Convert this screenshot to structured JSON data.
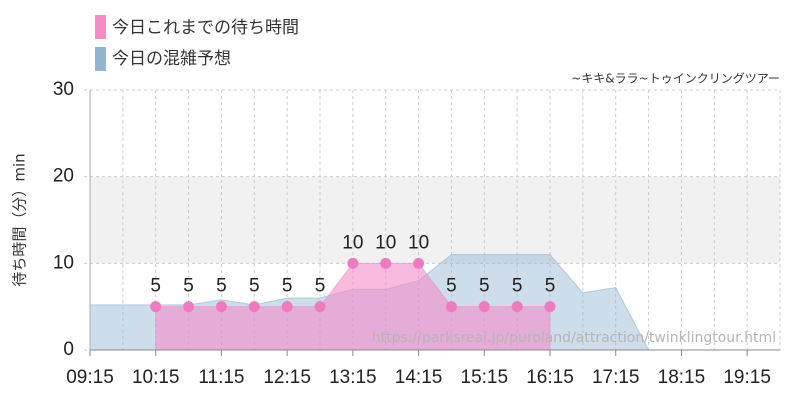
{
  "chart_data": {
    "type": "area",
    "subtitle": "~キキ&ララ~トゥインクリングツアー",
    "y_label": "待ち時間（分）min",
    "watermark": "https://parksreal.jp/puroland/attraction/twinklingtour.html",
    "x": [
      "09:15",
      "09:45",
      "10:15",
      "10:45",
      "11:15",
      "11:45",
      "12:15",
      "12:45",
      "13:15",
      "13:45",
      "14:15",
      "14:45",
      "15:15",
      "15:45",
      "16:15",
      "16:45",
      "17:15",
      "17:45",
      "18:15",
      "18:45",
      "19:15",
      "19:45"
    ],
    "series": [
      {
        "name": "今日の混雑予想",
        "color": "#93b4d0",
        "values": [
          5.2,
          5.2,
          5.2,
          5.2,
          5.8,
          5.2,
          6,
          6,
          7,
          7,
          8,
          11,
          11,
          11,
          11,
          6.6,
          7.2,
          0,
          0,
          0,
          0,
          0
        ]
      },
      {
        "name": "今日これまでの待ち時間",
        "color": "#f48cc8",
        "values": [
          null,
          null,
          5,
          5,
          5,
          5,
          5,
          5,
          10,
          10,
          10,
          5,
          5,
          5,
          5,
          null,
          null,
          null,
          null,
          null,
          null,
          null
        ]
      }
    ],
    "ylim": [
      0,
      30
    ],
    "yticks": [
      0,
      10,
      20,
      30
    ],
    "xticks": [
      "09:15",
      "10:15",
      "11:15",
      "12:15",
      "13:15",
      "14:15",
      "15:15",
      "16:15",
      "17:15",
      "18:15",
      "19:15"
    ],
    "shaded_band": [
      10,
      20
    ],
    "grid": true
  }
}
